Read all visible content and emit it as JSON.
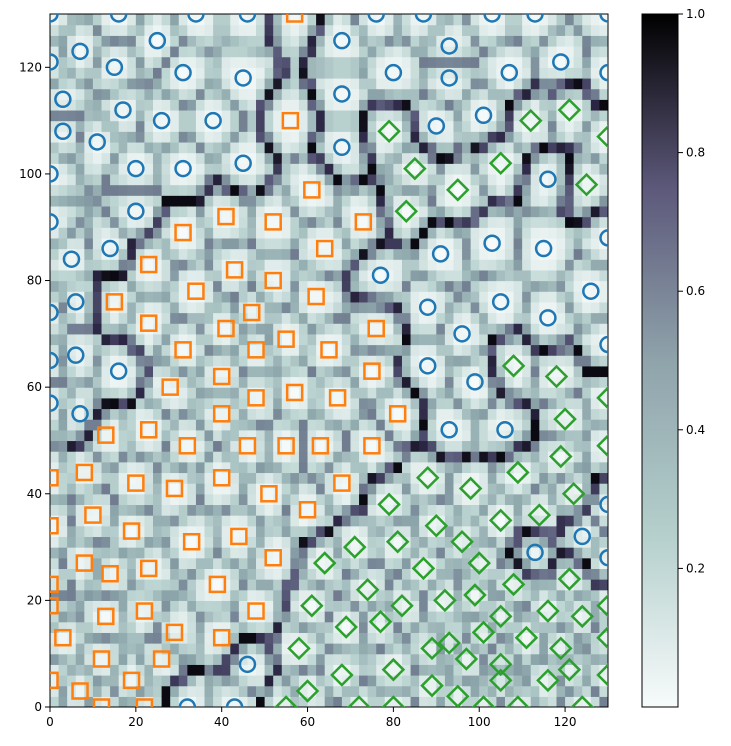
{
  "chart_data": {
    "type": "scatter",
    "title": "",
    "xlabel": "",
    "ylabel": "",
    "xlim": [
      0,
      130
    ],
    "ylim": [
      0,
      130
    ],
    "x_ticks": [
      0,
      20,
      40,
      60,
      80,
      100,
      120
    ],
    "y_ticks": [
      0,
      20,
      40,
      60,
      80,
      100,
      120
    ],
    "x_tick_labels": [
      "0",
      "20",
      "40",
      "60",
      "80",
      "100",
      "120"
    ],
    "y_tick_labels": [
      "0",
      "20",
      "40",
      "60",
      "80",
      "100",
      "120"
    ],
    "background": {
      "kind": "heatmap",
      "colormap": "bone_r",
      "vmin": 0,
      "vmax": 1,
      "description_of_pattern": "boundary-distance field with dark ridges separating point clusters"
    },
    "colorbar": {
      "ticks": [
        0.2,
        0.4,
        0.6,
        0.8,
        1.0
      ],
      "tick_labels": [
        "0.2",
        "0.4",
        "0.6",
        "0.8",
        "1.0"
      ]
    },
    "colors": {
      "series_circle": "#1f77b4",
      "series_square": "#ff7f0e",
      "series_diamond": "#2ca02c"
    },
    "series": [
      {
        "marker": "circle",
        "color": "#1f77b4",
        "points": [
          [
            0,
            130
          ],
          [
            16,
            130
          ],
          [
            34,
            130
          ],
          [
            46,
            130
          ],
          [
            76,
            130
          ],
          [
            87,
            130
          ],
          [
            103,
            130
          ],
          [
            113,
            130
          ],
          [
            130,
            130
          ],
          [
            7,
            123
          ],
          [
            25,
            125
          ],
          [
            68,
            125
          ],
          [
            93,
            124
          ],
          [
            0,
            121
          ],
          [
            15,
            120
          ],
          [
            31,
            119
          ],
          [
            45,
            118
          ],
          [
            80,
            119
          ],
          [
            93,
            118
          ],
          [
            107,
            119
          ],
          [
            119,
            121
          ],
          [
            130,
            119
          ],
          [
            3,
            114
          ],
          [
            17,
            112
          ],
          [
            26,
            110
          ],
          [
            38,
            110
          ],
          [
            68,
            115
          ],
          [
            101,
            111
          ],
          [
            3,
            108
          ],
          [
            11,
            106
          ],
          [
            68,
            105
          ],
          [
            90,
            109
          ],
          [
            20,
            101
          ],
          [
            31,
            101
          ],
          [
            45,
            102
          ],
          [
            0,
            100
          ],
          [
            116,
            99
          ],
          [
            20,
            93
          ],
          [
            0,
            91
          ],
          [
            14,
            86
          ],
          [
            91,
            85
          ],
          [
            103,
            87
          ],
          [
            115,
            86
          ],
          [
            130,
            88
          ],
          [
            5,
            84
          ],
          [
            77,
            81
          ],
          [
            6,
            76
          ],
          [
            0,
            74
          ],
          [
            88,
            75
          ],
          [
            105,
            76
          ],
          [
            116,
            73
          ],
          [
            126,
            78
          ],
          [
            6,
            66
          ],
          [
            0,
            65
          ],
          [
            96,
            70
          ],
          [
            130,
            68
          ],
          [
            16,
            63
          ],
          [
            88,
            64
          ],
          [
            99,
            61
          ],
          [
            0,
            57
          ],
          [
            7,
            55
          ],
          [
            93,
            52
          ],
          [
            106,
            52
          ],
          [
            130,
            38
          ],
          [
            124,
            32
          ],
          [
            130,
            28
          ],
          [
            113,
            29
          ],
          [
            46,
            8
          ],
          [
            32,
            0
          ],
          [
            43,
            0
          ]
        ]
      },
      {
        "marker": "square",
        "color": "#ff7f0e",
        "points": [
          [
            57,
            130
          ],
          [
            56,
            110
          ],
          [
            61,
            97
          ],
          [
            41,
            92
          ],
          [
            52,
            91
          ],
          [
            73,
            91
          ],
          [
            31,
            89
          ],
          [
            64,
            86
          ],
          [
            23,
            83
          ],
          [
            43,
            82
          ],
          [
            52,
            80
          ],
          [
            34,
            78
          ],
          [
            62,
            77
          ],
          [
            15,
            76
          ],
          [
            23,
            72
          ],
          [
            41,
            71
          ],
          [
            47,
            74
          ],
          [
            76,
            71
          ],
          [
            31,
            67
          ],
          [
            48,
            67
          ],
          [
            55,
            69
          ],
          [
            65,
            67
          ],
          [
            40,
            62
          ],
          [
            75,
            63
          ],
          [
            28,
            60
          ],
          [
            48,
            58
          ],
          [
            57,
            59
          ],
          [
            67,
            58
          ],
          [
            40,
            55
          ],
          [
            81,
            55
          ],
          [
            23,
            52
          ],
          [
            13,
            51
          ],
          [
            32,
            49
          ],
          [
            46,
            49
          ],
          [
            55,
            49
          ],
          [
            63,
            49
          ],
          [
            75,
            49
          ],
          [
            0,
            43
          ],
          [
            8,
            44
          ],
          [
            20,
            42
          ],
          [
            29,
            41
          ],
          [
            40,
            43
          ],
          [
            51,
            40
          ],
          [
            68,
            42
          ],
          [
            0,
            34
          ],
          [
            10,
            36
          ],
          [
            60,
            37
          ],
          [
            19,
            33
          ],
          [
            33,
            31
          ],
          [
            44,
            32
          ],
          [
            52,
            28
          ],
          [
            8,
            27
          ],
          [
            14,
            25
          ],
          [
            23,
            26
          ],
          [
            0,
            23
          ],
          [
            0,
            19
          ],
          [
            22,
            18
          ],
          [
            13,
            17
          ],
          [
            39,
            23
          ],
          [
            48,
            18
          ],
          [
            3,
            13
          ],
          [
            29,
            14
          ],
          [
            40,
            13
          ],
          [
            12,
            9
          ],
          [
            26,
            9
          ],
          [
            0,
            5
          ],
          [
            19,
            5
          ],
          [
            7,
            3
          ],
          [
            12,
            0
          ],
          [
            22,
            0
          ]
        ]
      },
      {
        "marker": "diamond",
        "color": "#2ca02c",
        "points": [
          [
            121,
            112
          ],
          [
            112,
            110
          ],
          [
            79,
            108
          ],
          [
            130,
            107
          ],
          [
            85,
            101
          ],
          [
            105,
            102
          ],
          [
            95,
            97
          ],
          [
            125,
            98
          ],
          [
            83,
            93
          ],
          [
            108,
            64
          ],
          [
            118,
            62
          ],
          [
            120,
            54
          ],
          [
            130,
            58
          ],
          [
            119,
            47
          ],
          [
            130,
            49
          ],
          [
            88,
            43
          ],
          [
            109,
            44
          ],
          [
            98,
            41
          ],
          [
            79,
            38
          ],
          [
            122,
            40
          ],
          [
            81,
            31
          ],
          [
            90,
            34
          ],
          [
            96,
            31
          ],
          [
            105,
            35
          ],
          [
            114,
            36
          ],
          [
            64,
            27
          ],
          [
            71,
            30
          ],
          [
            74,
            22
          ],
          [
            87,
            26
          ],
          [
            100,
            27
          ],
          [
            108,
            23
          ],
          [
            121,
            24
          ],
          [
            61,
            19
          ],
          [
            77,
            16
          ],
          [
            82,
            19
          ],
          [
            92,
            20
          ],
          [
            93,
            12
          ],
          [
            99,
            21
          ],
          [
            105,
            17
          ],
          [
            116,
            18
          ],
          [
            124,
            17
          ],
          [
            130,
            19
          ],
          [
            69,
            15
          ],
          [
            89,
            11
          ],
          [
            101,
            14
          ],
          [
            111,
            13
          ],
          [
            119,
            11
          ],
          [
            130,
            13
          ],
          [
            58,
            11
          ],
          [
            80,
            7
          ],
          [
            97,
            9
          ],
          [
            105,
            8
          ],
          [
            121,
            7
          ],
          [
            130,
            6
          ],
          [
            68,
            6
          ],
          [
            60,
            3
          ],
          [
            89,
            4
          ],
          [
            95,
            2
          ],
          [
            105,
            5
          ],
          [
            116,
            5
          ],
          [
            55,
            0
          ],
          [
            72,
            0
          ],
          [
            80,
            0
          ],
          [
            101,
            0
          ],
          [
            109,
            0
          ],
          [
            124,
            0
          ]
        ]
      }
    ]
  }
}
